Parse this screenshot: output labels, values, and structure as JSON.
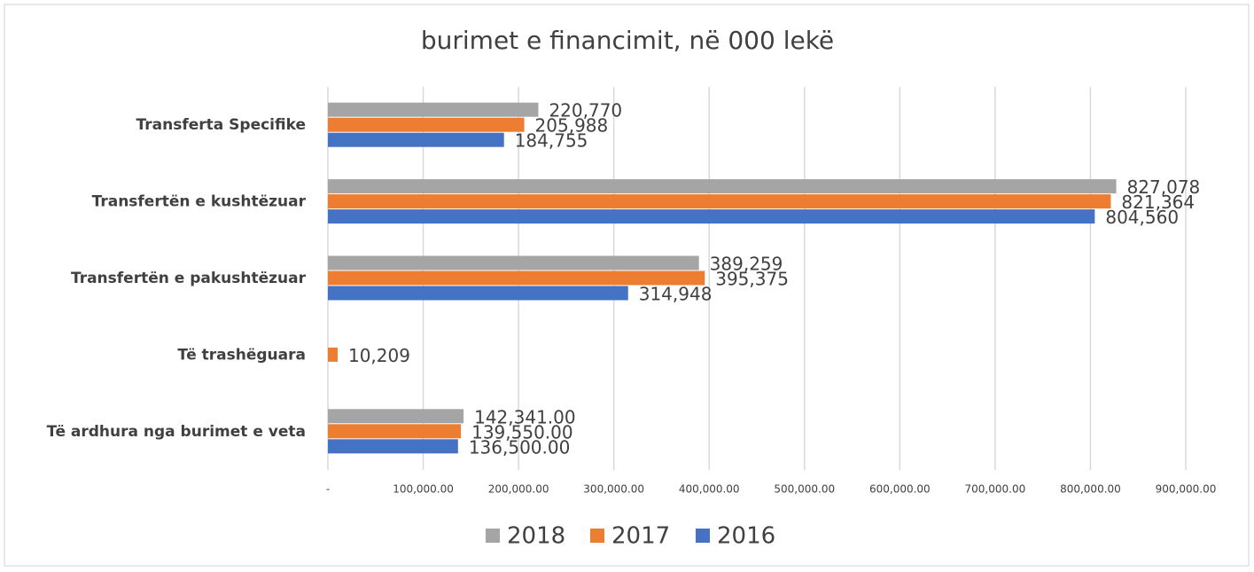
{
  "chart_data": {
    "type": "bar",
    "orientation": "horizontal",
    "title": "burimet e financimit, në 000 lekë",
    "categories": [
      "Transferta Specifike",
      "Transfertën e kushtëzuar",
      "Transfertën e pakushtëzuar",
      "Të trashëguara",
      "Të ardhura nga burimet e veta"
    ],
    "series": [
      {
        "name": "2018",
        "color": "#a5a5a5",
        "values": [
          220770,
          827078,
          389259,
          null,
          142341
        ],
        "value_labels": [
          "220,770",
          "827,078",
          "389,259",
          null,
          "142,341.00"
        ]
      },
      {
        "name": "2017",
        "color": "#ed7d31",
        "values": [
          205988,
          821364,
          395375,
          10209,
          139550
        ],
        "value_labels": [
          "205,988",
          "821,364",
          "395,375",
          "10,209",
          "139,550.00"
        ]
      },
      {
        "name": "2016",
        "color": "#4472c4",
        "values": [
          184755,
          804560,
          314948,
          null,
          136500
        ],
        "value_labels": [
          "184,755",
          "804,560",
          "314,948",
          null,
          "136,500.00"
        ]
      }
    ],
    "xlim": [
      0,
      900000
    ],
    "xticks": [
      {
        "value": 0,
        "label": "-"
      },
      {
        "value": 100000,
        "label": "100,000.00"
      },
      {
        "value": 200000,
        "label": "200,000.00"
      },
      {
        "value": 300000,
        "label": "300,000.00"
      },
      {
        "value": 400000,
        "label": "400,000.00"
      },
      {
        "value": 500000,
        "label": "500,000.00"
      },
      {
        "value": 600000,
        "label": "600,000.00"
      },
      {
        "value": 700000,
        "label": "700,000.00"
      },
      {
        "value": 800000,
        "label": "800,000.00"
      },
      {
        "value": 900000,
        "label": "900,000.00"
      }
    ],
    "grid": true,
    "legend": "bottom"
  }
}
